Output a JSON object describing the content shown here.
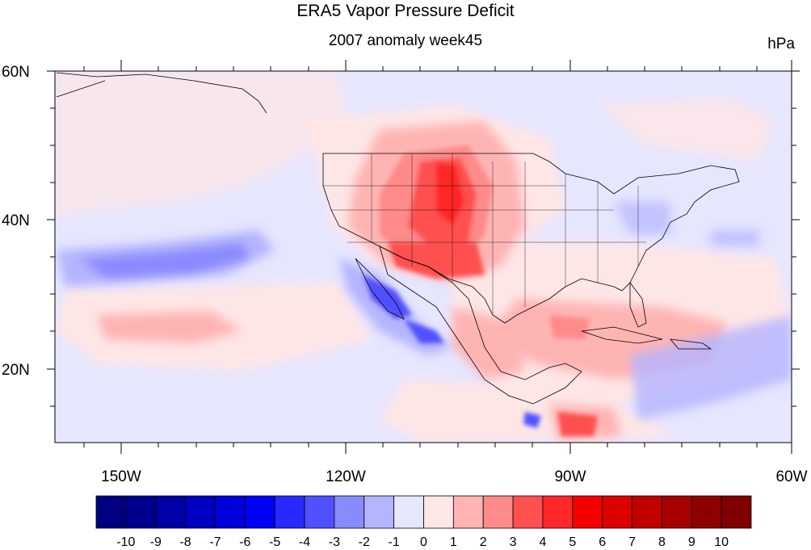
{
  "title": "ERA5 Vapor Pressure Deficit",
  "subtitle": "2007 anomaly week45",
  "units": "hPa",
  "map": {
    "lon_range": [
      -160,
      -60
    ],
    "lat_range": [
      10,
      60
    ],
    "lat_labels": [
      "60N",
      "40N",
      "20N"
    ],
    "lon_labels": [
      "150W",
      "120W",
      "90W",
      "60W"
    ]
  },
  "colorbar": {
    "labels": [
      "-10",
      "-9",
      "-8",
      "-7",
      "-6",
      "-5",
      "-4",
      "-3",
      "-2",
      "-1",
      "0",
      "1",
      "2",
      "3",
      "4",
      "5",
      "6",
      "7",
      "8",
      "9",
      "10"
    ],
    "colors": [
      "#000080",
      "#00008f",
      "#0000a8",
      "#0000c0",
      "#0000dd",
      "#0000f5",
      "#2828ff",
      "#5050ff",
      "#8a8aff",
      "#b4b4ff",
      "#e6e6ff",
      "#ffe6e6",
      "#ffb4b4",
      "#ff8a8a",
      "#ff5050",
      "#ff2828",
      "#f50000",
      "#dd0000",
      "#c00000",
      "#a80000",
      "#8f0000",
      "#800000"
    ]
  },
  "colors": {
    "neutral_blue": "#e6e6ff",
    "neutral_red": "#ffe6e6"
  }
}
